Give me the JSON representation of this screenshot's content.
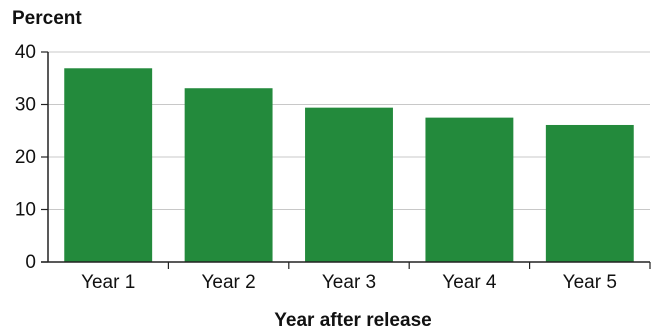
{
  "chart_data": {
    "type": "bar",
    "title": "",
    "ylabel": "Percent",
    "xlabel": "Year after release",
    "categories": [
      "Year 1",
      "Year 2",
      "Year 3",
      "Year 4",
      "Year 5"
    ],
    "values": [
      36.9,
      33.1,
      29.4,
      27.5,
      26.1
    ],
    "ylim": [
      0,
      40
    ],
    "yticks": [
      0,
      10,
      20,
      30,
      40
    ],
    "grid": true,
    "bar_color": "#238a3c"
  }
}
